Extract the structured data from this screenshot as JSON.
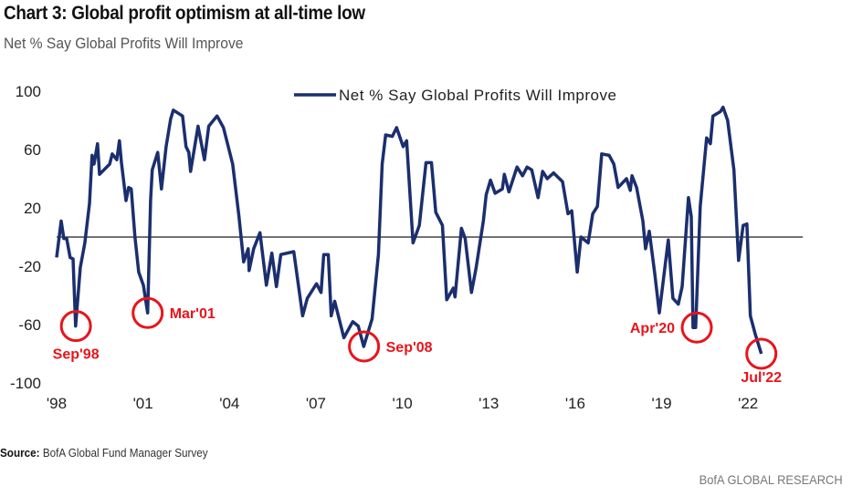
{
  "header": {
    "title": "Chart 3: Global profit optimism at all-time low",
    "subtitle": "Net % Say Global Profits Will Improve"
  },
  "footer": {
    "source_label": "Source:",
    "source_text": "BofA Global Fund Manager Survey",
    "brand": "BofA GLOBAL RESEARCH"
  },
  "chart_data": {
    "type": "line",
    "title": "Chart 3: Global profit optimism at all-time low",
    "subtitle": "Net % Say Global Profits Will Improve",
    "xlabel": "",
    "ylabel": "",
    "xlim": [
      1998,
      2023.9
    ],
    "ylim": [
      -100,
      100
    ],
    "yticks": [
      100,
      60,
      20,
      -20,
      -60,
      -100
    ],
    "ytick_labels": [
      "100",
      "60",
      "20",
      "-20",
      "-60",
      "-100"
    ],
    "xticks": [
      1998,
      2001,
      2004,
      2007,
      2010,
      2013,
      2016,
      2019,
      2022
    ],
    "xtick_labels": [
      "'98",
      "'01",
      "'04",
      "'07",
      "'10",
      "'13",
      "'16",
      "'19",
      "'22"
    ],
    "reference_line": 0,
    "grid": false,
    "legend_placement": "top-center",
    "colors": {
      "series": "#1b2f6e",
      "annotation": "#e8141b",
      "zero_line": "#444444"
    },
    "series": [
      {
        "name": "Net % Say Global Profits Will Improve",
        "points": [
          [
            1998.0,
            -14
          ],
          [
            1998.16,
            11
          ],
          [
            1998.25,
            -1
          ],
          [
            1998.35,
            -1
          ],
          [
            1998.47,
            -14
          ],
          [
            1998.57,
            -15
          ],
          [
            1998.66,
            -61
          ],
          [
            1998.82,
            -21
          ],
          [
            1998.98,
            -4
          ],
          [
            1999.14,
            23
          ],
          [
            1999.23,
            56
          ],
          [
            1999.3,
            50
          ],
          [
            1999.42,
            64
          ],
          [
            1999.49,
            43
          ],
          [
            1999.84,
            50
          ],
          [
            1999.93,
            57
          ],
          [
            2000.09,
            53
          ],
          [
            2000.18,
            66
          ],
          [
            2000.25,
            51
          ],
          [
            2000.41,
            25
          ],
          [
            2000.5,
            34
          ],
          [
            2000.59,
            33
          ],
          [
            2000.72,
            0
          ],
          [
            2000.85,
            -24
          ],
          [
            2001.01,
            -33
          ],
          [
            2001.16,
            -52
          ],
          [
            2001.26,
            25
          ],
          [
            2001.32,
            46
          ],
          [
            2001.51,
            58
          ],
          [
            2001.64,
            33
          ],
          [
            2001.8,
            62
          ],
          [
            2001.96,
            81
          ],
          [
            2002.05,
            87
          ],
          [
            2002.37,
            83
          ],
          [
            2002.49,
            62
          ],
          [
            2002.59,
            58
          ],
          [
            2002.65,
            45
          ],
          [
            2002.91,
            76
          ],
          [
            2003.13,
            53
          ],
          [
            2003.28,
            76
          ],
          [
            2003.57,
            83
          ],
          [
            2003.79,
            75
          ],
          [
            2004.11,
            50
          ],
          [
            2004.33,
            14
          ],
          [
            2004.49,
            -17
          ],
          [
            2004.65,
            -8
          ],
          [
            2004.68,
            -23
          ],
          [
            2004.84,
            -8
          ],
          [
            2005.06,
            3
          ],
          [
            2005.28,
            -33
          ],
          [
            2005.47,
            -11
          ],
          [
            2005.63,
            -34
          ],
          [
            2005.78,
            -12
          ],
          [
            2006.23,
            -10
          ],
          [
            2006.54,
            -54
          ],
          [
            2006.7,
            -42
          ],
          [
            2007.02,
            -32
          ],
          [
            2007.18,
            -38
          ],
          [
            2007.27,
            -12
          ],
          [
            2007.43,
            -12
          ],
          [
            2007.53,
            -54
          ],
          [
            2007.65,
            -44
          ],
          [
            2007.97,
            -69
          ],
          [
            2008.28,
            -58
          ],
          [
            2008.47,
            -61
          ],
          [
            2008.66,
            -75
          ],
          [
            2008.95,
            -56
          ],
          [
            2009.17,
            -12
          ],
          [
            2009.3,
            50
          ],
          [
            2009.42,
            70
          ],
          [
            2009.65,
            69
          ],
          [
            2009.8,
            75
          ],
          [
            2010.03,
            62
          ],
          [
            2010.15,
            66
          ],
          [
            2010.37,
            -4
          ],
          [
            2010.59,
            8
          ],
          [
            2010.82,
            51
          ],
          [
            2011.01,
            51
          ],
          [
            2011.16,
            17
          ],
          [
            2011.39,
            8
          ],
          [
            2011.54,
            -43
          ],
          [
            2011.77,
            -35
          ],
          [
            2011.83,
            -41
          ],
          [
            2012.05,
            6
          ],
          [
            2012.18,
            -1
          ],
          [
            2012.4,
            -38
          ],
          [
            2012.56,
            -21
          ],
          [
            2012.81,
            11
          ],
          [
            2012.91,
            29
          ],
          [
            2013.06,
            39
          ],
          [
            2013.22,
            30
          ],
          [
            2013.47,
            33
          ],
          [
            2013.54,
            43
          ],
          [
            2013.7,
            31
          ],
          [
            2013.98,
            48
          ],
          [
            2014.17,
            42
          ],
          [
            2014.33,
            48
          ],
          [
            2014.49,
            46
          ],
          [
            2014.71,
            27
          ],
          [
            2014.87,
            45
          ],
          [
            2015.03,
            40
          ],
          [
            2015.25,
            44
          ],
          [
            2015.56,
            38
          ],
          [
            2015.75,
            16
          ],
          [
            2015.88,
            18
          ],
          [
            2016.07,
            -24
          ],
          [
            2016.2,
            0
          ],
          [
            2016.45,
            -4
          ],
          [
            2016.61,
            16
          ],
          [
            2016.77,
            21
          ],
          [
            2016.92,
            57
          ],
          [
            2017.18,
            56
          ],
          [
            2017.34,
            50
          ],
          [
            2017.49,
            34
          ],
          [
            2017.78,
            40
          ],
          [
            2017.91,
            32
          ],
          [
            2017.97,
            42
          ],
          [
            2018.13,
            34
          ],
          [
            2018.35,
            11
          ],
          [
            2018.44,
            -8
          ],
          [
            2018.57,
            4
          ],
          [
            2018.76,
            -25
          ],
          [
            2018.92,
            -52
          ],
          [
            2019.23,
            -2
          ],
          [
            2019.39,
            -42
          ],
          [
            2019.58,
            -46
          ],
          [
            2019.71,
            -34
          ],
          [
            2019.93,
            27
          ],
          [
            2020.03,
            14
          ],
          [
            2020.09,
            -62
          ],
          [
            2020.18,
            -62
          ],
          [
            2020.34,
            21
          ],
          [
            2020.56,
            68
          ],
          [
            2020.69,
            64
          ],
          [
            2020.78,
            83
          ],
          [
            2021.04,
            86
          ],
          [
            2021.13,
            89
          ],
          [
            2021.29,
            80
          ],
          [
            2021.51,
            46
          ],
          [
            2021.67,
            -16
          ],
          [
            2021.83,
            8
          ],
          [
            2021.96,
            9
          ],
          [
            2022.08,
            -54
          ],
          [
            2022.24,
            -66
          ],
          [
            2022.46,
            -80
          ]
        ]
      }
    ],
    "annotations": [
      {
        "label": "Sep'98",
        "x": 1998.67,
        "y": -61,
        "label_position": "below"
      },
      {
        "label": "Mar'01",
        "x": 2001.16,
        "y": -52,
        "label_position": "right"
      },
      {
        "label": "Sep'08",
        "x": 2008.67,
        "y": -75,
        "label_position": "right"
      },
      {
        "label": "Apr'20",
        "x": 2020.22,
        "y": -62,
        "label_position": "left"
      },
      {
        "label": "Jul'22",
        "x": 2022.46,
        "y": -80,
        "label_position": "below"
      }
    ]
  }
}
